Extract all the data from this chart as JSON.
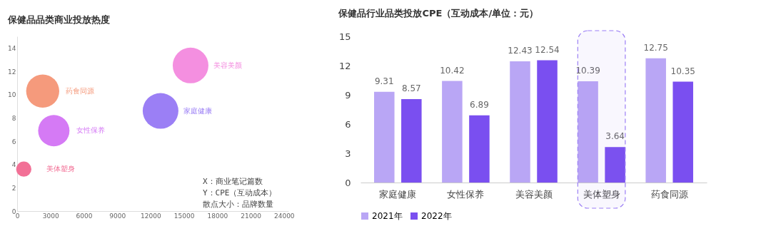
{
  "chart_data": [
    {
      "type": "bubble",
      "title": "保健品品类商业投放热度",
      "xlim": [
        0,
        24400
      ],
      "xticks": [
        0,
        3000,
        6000,
        9000,
        12000,
        15000,
        18000,
        21000,
        24000
      ],
      "ylim": [
        0,
        15
      ],
      "yticks": [
        0,
        2,
        4,
        6,
        8,
        10,
        12,
        14
      ],
      "grid": false,
      "legend": false,
      "series": [
        {
          "name": "美容美颜",
          "color": "#f48fe0",
          "x": [
            15600
          ],
          "values": [
            12.5
          ],
          "sizes": [
            1
          ]
        },
        {
          "name": "药食同源",
          "color": "#f59a7c",
          "x": [
            2300
          ],
          "values": [
            10.3
          ],
          "sizes": [
            0.86
          ]
        },
        {
          "name": "家庭健康",
          "color": "#9b7ff5",
          "x": [
            12900
          ],
          "values": [
            8.6
          ],
          "sizes": [
            1
          ]
        },
        {
          "name": "女性保养",
          "color": "#d57af5",
          "x": [
            3300
          ],
          "values": [
            6.9
          ],
          "sizes": [
            0.77
          ]
        },
        {
          "name": "美体塑身",
          "color": "#f27096",
          "x": [
            600
          ],
          "values": [
            3.6
          ],
          "sizes": [
            0.18
          ]
        }
      ],
      "annotations": [
        "X：商业笔记篇数",
        "Y：CPE（互动成本）",
        "散点大小：品牌数量"
      ]
    },
    {
      "type": "bar",
      "title": "保健品行业品类投放CPE（互动成本/单位：元）",
      "categories": [
        "家庭健康",
        "女性保养",
        "美容美颜",
        "美体塑身",
        "药食同源"
      ],
      "ylim": [
        0,
        15
      ],
      "yticks": [
        0,
        3,
        6,
        9,
        12,
        15
      ],
      "grid": false,
      "legend": "bottom",
      "data_labels": true,
      "series": [
        {
          "name": "2021年",
          "color": "#b9a6f5",
          "values": [
            9.31,
            10.42,
            12.43,
            10.39,
            12.75
          ]
        },
        {
          "name": "2022年",
          "color": "#7a4ff0",
          "values": [
            8.57,
            6.89,
            12.54,
            3.64,
            10.35
          ]
        }
      ],
      "bands": [
        {
          "axis": "x",
          "from": "美体塑身",
          "to": "美体塑身",
          "color": "#9b7ff5"
        }
      ]
    }
  ]
}
